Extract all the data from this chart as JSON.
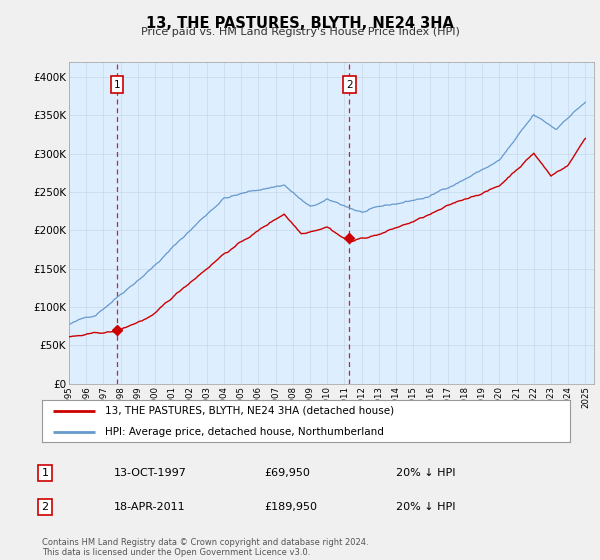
{
  "title": "13, THE PASTURES, BLYTH, NE24 3HA",
  "subtitle": "Price paid vs. HM Land Registry's House Price Index (HPI)",
  "price_paid_color": "#cc0000",
  "hpi_color": "#6699cc",
  "plot_bg_color": "#ddeeff",
  "marker1_year": 1997.79,
  "marker1_price": 69950,
  "marker2_year": 2011.29,
  "marker2_price": 189950,
  "ylim": [
    0,
    420000
  ],
  "yticks": [
    0,
    50000,
    100000,
    150000,
    200000,
    250000,
    300000,
    350000,
    400000
  ],
  "ytick_labels": [
    "£0",
    "£50K",
    "£100K",
    "£150K",
    "£200K",
    "£250K",
    "£300K",
    "£350K",
    "£400K"
  ],
  "xlim_start": 1995,
  "xlim_end": 2025.5,
  "legend_line1": "13, THE PASTURES, BLYTH, NE24 3HA (detached house)",
  "legend_line2": "HPI: Average price, detached house, Northumberland",
  "annotation1_num": "1",
  "annotation1_date": "13-OCT-1997",
  "annotation1_price": "£69,950",
  "annotation1_hpi": "20% ↓ HPI",
  "annotation2_num": "2",
  "annotation2_date": "18-APR-2011",
  "annotation2_price": "£189,950",
  "annotation2_hpi": "20% ↓ HPI",
  "footer": "Contains HM Land Registry data © Crown copyright and database right 2024.\nThis data is licensed under the Open Government Licence v3.0.",
  "bg_color": "#f0f0f0"
}
